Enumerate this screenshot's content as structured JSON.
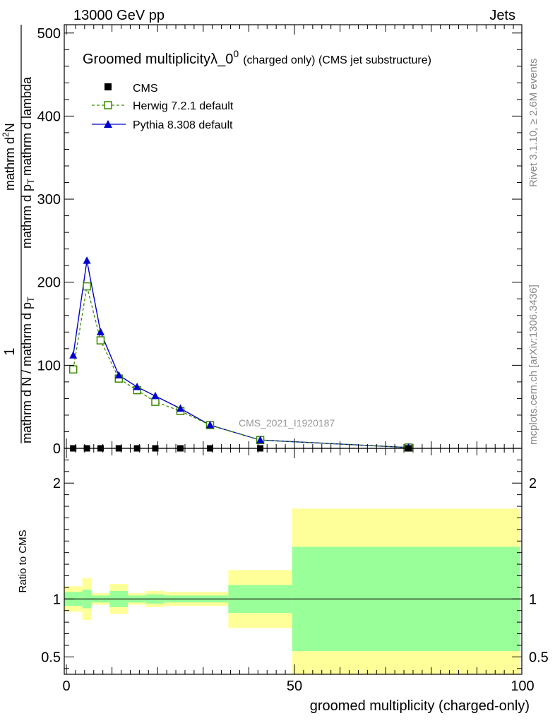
{
  "header": {
    "left": "13000 GeV pp",
    "right": "Jets"
  },
  "side_labels": {
    "rivet": "Rivet 3.1.10, ≥ 2.6M events",
    "mcplots": "mcplots.cern.ch [arXiv:1306.3436]"
  },
  "plot_title": {
    "main": "Groomed multiplicityλ_0",
    "sup": "0",
    "detail": "(charged only) (CMS jet substructure)"
  },
  "analysis_tag": "CMS_2021_I1920187",
  "legend": [
    {
      "label": "CMS",
      "color": "#000000",
      "marker": "square"
    },
    {
      "label": "Herwig 7.2.1 default",
      "color": "#3a8a00",
      "marker": "open-square"
    },
    {
      "label": "Pythia 8.308 default",
      "color": "#0000cc",
      "marker": "triangle"
    }
  ],
  "y_axis_label": {
    "numerator": "1",
    "denominator": "mathrm d N / mathrm d p",
    "denominator_sub": "T",
    "right_num": "mathrm d",
    "right_num_sup": "2",
    "right_num_tail": "N",
    "right_den": "mathrm d p",
    "right_den_sub": "T",
    "right_den_tail": "mathrm d lambda"
  },
  "x_axis_label": "groomed multiplicity (charged-only)",
  "ratio_ylabel": "Ratio to CMS",
  "chart_data": [
    {
      "type": "line",
      "xlim": [
        0,
        100
      ],
      "ylim": [
        0,
        510
      ],
      "y_ticks": [
        "0",
        "100",
        "200",
        "300",
        "400",
        "500"
      ],
      "y_tick_values": [
        0,
        100,
        200,
        300,
        400,
        500
      ],
      "x_ticks": [
        "0",
        "50",
        "100"
      ],
      "x_tick_values": [
        0,
        50,
        100
      ],
      "series": [
        {
          "name": "CMS",
          "x": [
            1.5,
            4.5,
            7.5,
            11.5,
            15.5,
            19.5,
            25,
            31.5,
            42.5,
            75
          ],
          "y": [
            0,
            0,
            0,
            0,
            0,
            0,
            0,
            0,
            0,
            0
          ]
        },
        {
          "name": "Herwig 7.2.1 default",
          "x": [
            1.5,
            4.5,
            7.5,
            11.5,
            15.5,
            19.5,
            25,
            31.5,
            42.5,
            75
          ],
          "y": [
            95,
            195,
            130,
            84,
            70,
            56,
            45,
            28,
            10,
            1
          ]
        },
        {
          "name": "Pythia 8.308 default",
          "x": [
            1.5,
            4.5,
            7.5,
            11.5,
            15.5,
            19.5,
            25,
            31.5,
            42.5,
            75
          ],
          "y": [
            112,
            226,
            140,
            88,
            74,
            63,
            48,
            28,
            10,
            1
          ]
        }
      ]
    },
    {
      "type": "area",
      "xlim": [
        0,
        100
      ],
      "ylim": [
        0.35,
        2.3
      ],
      "y_ticks": [
        "0.5",
        "1",
        "2"
      ],
      "y_tick_values": [
        0.5,
        1,
        2
      ],
      "reference_line": 1,
      "bins": [
        {
          "x0": -0.5,
          "x1": 3.5,
          "inner": [
            0.94,
            1.06
          ],
          "outer": [
            0.89,
            1.11
          ]
        },
        {
          "x0": 3.5,
          "x1": 5.5,
          "inner": [
            0.92,
            1.08
          ],
          "outer": [
            0.82,
            1.18
          ]
        },
        {
          "x0": 5.5,
          "x1": 9.5,
          "inner": [
            0.97,
            1.03
          ],
          "outer": [
            0.95,
            1.05
          ]
        },
        {
          "x0": 9.5,
          "x1": 13.5,
          "inner": [
            0.93,
            1.07
          ],
          "outer": [
            0.87,
            1.13
          ]
        },
        {
          "x0": 13.5,
          "x1": 17.5,
          "inner": [
            0.97,
            1.03
          ],
          "outer": [
            0.95,
            1.05
          ]
        },
        {
          "x0": 17.5,
          "x1": 21.5,
          "inner": [
            0.96,
            1.04
          ],
          "outer": [
            0.93,
            1.07
          ]
        },
        {
          "x0": 21.5,
          "x1": 35.5,
          "inner": [
            0.97,
            1.03
          ],
          "outer": [
            0.94,
            1.06
          ]
        },
        {
          "x0": 35.5,
          "x1": 49.5,
          "inner": [
            0.88,
            1.12
          ],
          "outer": [
            0.75,
            1.25
          ]
        },
        {
          "x0": 49.5,
          "x1": 99.5,
          "inner": [
            0.55,
            1.45
          ],
          "outer": [
            0.35,
            1.78
          ]
        }
      ]
    }
  ],
  "colors": {
    "band_inner": "#99ff99",
    "band_outer": "#ffff99",
    "herwig": "#3a8a00",
    "pythia": "#0000cc",
    "data": "#000000",
    "gray_text": "#888888"
  }
}
